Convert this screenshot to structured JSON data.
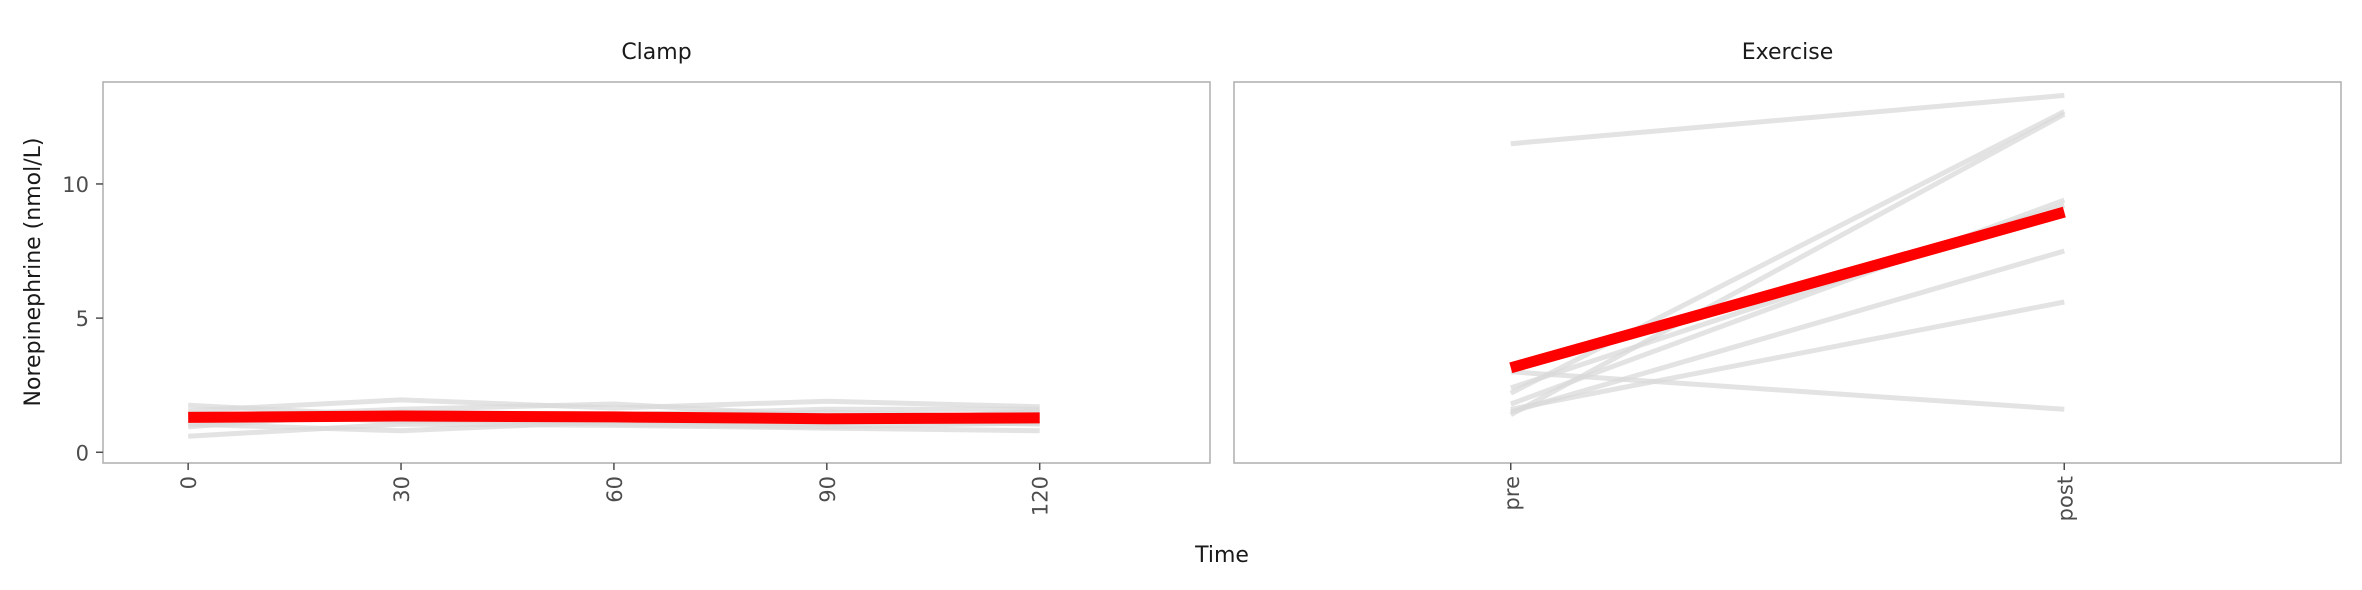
{
  "chart_data": {
    "type": "line",
    "xlabel": "Time",
    "ylabel": "Norepinephrine (nmol/L)",
    "ylim": [
      -0.4,
      13.8
    ],
    "yticks": [
      0,
      5,
      10
    ],
    "grid": false,
    "colors": {
      "individual": "#d9d9d9",
      "mean": "#ff0000"
    },
    "panels": [
      {
        "title": "Clamp",
        "x": [
          0,
          30,
          60,
          90,
          120
        ],
        "xlim": [
          -12,
          144
        ],
        "xticks": [
          "0",
          "30",
          "60",
          "90",
          "120"
        ],
        "subjects": [
          [
            1.75,
            1.35,
            1.15,
            1.05,
            1.55
          ],
          [
            1.55,
            1.95,
            1.65,
            1.9,
            1.7
          ],
          [
            0.6,
            1.05,
            1.0,
            0.9,
            0.8
          ],
          [
            1.05,
            0.8,
            1.15,
            1.2,
            1.05
          ],
          [
            1.3,
            1.6,
            1.8,
            1.35,
            1.4
          ],
          [
            1.45,
            1.15,
            1.25,
            1.5,
            1.3
          ],
          [
            0.95,
            1.5,
            1.4,
            1.6,
            1.6
          ],
          [
            1.2,
            1.25,
            1.05,
            0.95,
            1.1
          ]
        ],
        "mean": [
          1.3,
          1.35,
          1.32,
          1.25,
          1.28
        ]
      },
      {
        "title": "Exercise",
        "x": [
          "pre",
          "post"
        ],
        "xlim": [
          -0.5,
          1.5
        ],
        "xticks": [
          "pre",
          "post"
        ],
        "subjects": [
          [
            11.5,
            13.3
          ],
          [
            3.0,
            1.6
          ],
          [
            2.2,
            12.7
          ],
          [
            1.4,
            12.6
          ],
          [
            1.8,
            9.4
          ],
          [
            1.5,
            7.5
          ],
          [
            1.6,
            5.6
          ],
          [
            2.4,
            9.2
          ]
        ],
        "mean": [
          3.15,
          8.95
        ]
      }
    ]
  }
}
